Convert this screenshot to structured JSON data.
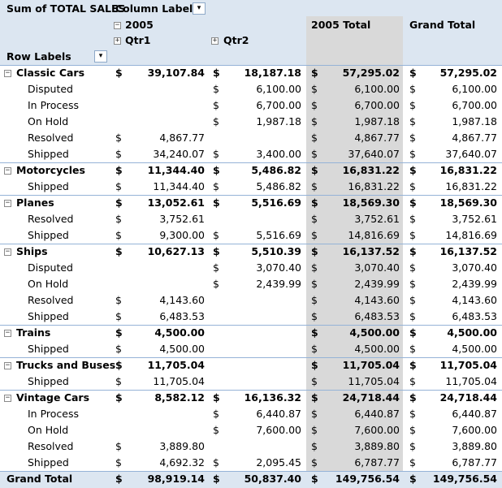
{
  "header": {
    "data_field": "Sum of TOTAL SALES",
    "column_labels": "Column Labels",
    "row_labels": "Row Labels",
    "year": "2005",
    "qtr1": "Qtr1",
    "qtr2": "Qtr2",
    "year_total": "2005 Total",
    "grand_total": "Grand Total",
    "collapse_sign": "−",
    "expand_sign": "+",
    "filter_icon": "filter-dropdown-icon",
    "dropdown_icon": "dropdown-arrow-icon"
  },
  "currency": "$",
  "colors": {
    "header_bg": "#dce6f1",
    "total_column_bg": "#d9d9d9",
    "border": "#95b3d7"
  },
  "rows": [
    {
      "type": "group",
      "label": "Classic Cars",
      "q1": "39,107.84",
      "q2": "18,187.18",
      "total": "57,295.02",
      "grand": "57,295.02"
    },
    {
      "type": "item",
      "label": "Disputed",
      "q1": "",
      "q2": "6,100.00",
      "total": "6,100.00",
      "grand": "6,100.00"
    },
    {
      "type": "item",
      "label": "In Process",
      "q1": "",
      "q2": "6,700.00",
      "total": "6,700.00",
      "grand": "6,700.00"
    },
    {
      "type": "item",
      "label": "On Hold",
      "q1": "",
      "q2": "1,987.18",
      "total": "1,987.18",
      "grand": "1,987.18"
    },
    {
      "type": "item",
      "label": "Resolved",
      "q1": "4,867.77",
      "q2": "",
      "total": "4,867.77",
      "grand": "4,867.77"
    },
    {
      "type": "item",
      "label": "Shipped",
      "q1": "34,240.07",
      "q2": "3,400.00",
      "total": "37,640.07",
      "grand": "37,640.07"
    },
    {
      "type": "group",
      "label": "Motorcycles",
      "q1": "11,344.40",
      "q2": "5,486.82",
      "total": "16,831.22",
      "grand": "16,831.22"
    },
    {
      "type": "item",
      "label": "Shipped",
      "q1": "11,344.40",
      "q2": "5,486.82",
      "total": "16,831.22",
      "grand": "16,831.22"
    },
    {
      "type": "group",
      "label": "Planes",
      "q1": "13,052.61",
      "q2": "5,516.69",
      "total": "18,569.30",
      "grand": "18,569.30"
    },
    {
      "type": "item",
      "label": "Resolved",
      "q1": "3,752.61",
      "q2": "",
      "total": "3,752.61",
      "grand": "3,752.61"
    },
    {
      "type": "item",
      "label": "Shipped",
      "q1": "9,300.00",
      "q2": "5,516.69",
      "total": "14,816.69",
      "grand": "14,816.69"
    },
    {
      "type": "group",
      "label": "Ships",
      "q1": "10,627.13",
      "q2": "5,510.39",
      "total": "16,137.52",
      "grand": "16,137.52"
    },
    {
      "type": "item",
      "label": "Disputed",
      "q1": "",
      "q2": "3,070.40",
      "total": "3,070.40",
      "grand": "3,070.40"
    },
    {
      "type": "item",
      "label": "On Hold",
      "q1": "",
      "q2": "2,439.99",
      "total": "2,439.99",
      "grand": "2,439.99"
    },
    {
      "type": "item",
      "label": "Resolved",
      "q1": "4,143.60",
      "q2": "",
      "total": "4,143.60",
      "grand": "4,143.60"
    },
    {
      "type": "item",
      "label": "Shipped",
      "q1": "6,483.53",
      "q2": "",
      "total": "6,483.53",
      "grand": "6,483.53"
    },
    {
      "type": "group",
      "label": "Trains",
      "q1": "4,500.00",
      "q2": "",
      "total": "4,500.00",
      "grand": "4,500.00"
    },
    {
      "type": "item",
      "label": "Shipped",
      "q1": "4,500.00",
      "q2": "",
      "total": "4,500.00",
      "grand": "4,500.00"
    },
    {
      "type": "group",
      "label": "Trucks and Buses",
      "q1": "11,705.04",
      "q2": "",
      "total": "11,705.04",
      "grand": "11,705.04"
    },
    {
      "type": "item",
      "label": "Shipped",
      "q1": "11,705.04",
      "q2": "",
      "total": "11,705.04",
      "grand": "11,705.04"
    },
    {
      "type": "group",
      "label": "Vintage Cars",
      "q1": "8,582.12",
      "q2": "16,136.32",
      "total": "24,718.44",
      "grand": "24,718.44"
    },
    {
      "type": "item",
      "label": "In Process",
      "q1": "",
      "q2": "6,440.87",
      "total": "6,440.87",
      "grand": "6,440.87"
    },
    {
      "type": "item",
      "label": "On Hold",
      "q1": "",
      "q2": "7,600.00",
      "total": "7,600.00",
      "grand": "7,600.00"
    },
    {
      "type": "item",
      "label": "Resolved",
      "q1": "3,889.80",
      "q2": "",
      "total": "3,889.80",
      "grand": "3,889.80"
    },
    {
      "type": "item",
      "label": "Shipped",
      "q1": "4,692.32",
      "q2": "2,095.45",
      "total": "6,787.77",
      "grand": "6,787.77"
    }
  ],
  "grand_total": {
    "label": "Grand Total",
    "q1": "98,919.14",
    "q2": "50,837.40",
    "total": "149,756.54",
    "grand": "149,756.54"
  }
}
